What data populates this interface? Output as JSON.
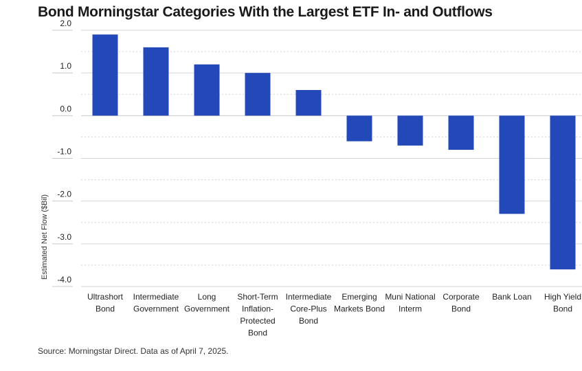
{
  "title": "Bond Morningstar Categories With the Largest ETF In- and Outflows",
  "source": "Source: Morningstar Direct. Data as of April 7, 2025.",
  "chart_data": {
    "type": "bar",
    "title": "Bond Morningstar Categories With the Largest ETF In- and Outflows",
    "ylabel": "Estimated Net Flow ($Bil)",
    "xlabel": "",
    "ylim": [
      -4.0,
      2.0
    ],
    "yticks": [
      "2.0",
      "1.0",
      "0.0",
      "-1.0",
      "-2.0",
      "-3.0",
      "-4.0"
    ],
    "grid": true,
    "categories": [
      [
        "Ultrashort",
        "Bond"
      ],
      [
        "Intermediate",
        "Government"
      ],
      [
        "Long",
        "Government"
      ],
      [
        "Short-Term",
        "Inflation-",
        "Protected",
        "Bond"
      ],
      [
        "Intermediate",
        "Core-Plus",
        "Bond"
      ],
      [
        "Emerging",
        "Markets Bond"
      ],
      [
        "Muni National",
        "Interm"
      ],
      [
        "Corporate",
        "Bond"
      ],
      [
        "Bank Loan"
      ],
      [
        "High Yield",
        "Bond"
      ]
    ],
    "values": [
      1.9,
      1.6,
      1.2,
      1.0,
      0.6,
      -0.6,
      -0.7,
      -0.8,
      -2.3,
      -3.6
    ],
    "colors": {
      "bar": "#2349b8",
      "grid": "#d4d4d4",
      "zero": "#c8c8c8"
    }
  }
}
